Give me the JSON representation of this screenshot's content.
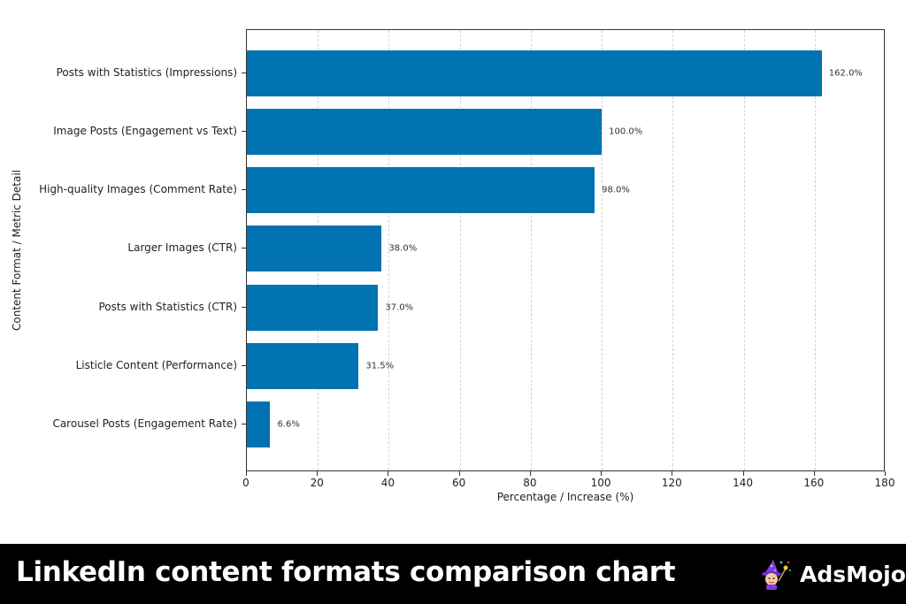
{
  "chart_data": {
    "type": "bar",
    "orientation": "horizontal",
    "title": "",
    "xlabel": "Percentage / Increase (%)",
    "ylabel": "Content Format / Metric Detail",
    "xlim": [
      0,
      180
    ],
    "xticks": [
      0,
      20,
      40,
      60,
      80,
      100,
      120,
      140,
      160,
      180
    ],
    "xtick_labels": [
      "0",
      "20",
      "40",
      "60",
      "80",
      "100",
      "120",
      "140",
      "160",
      "180"
    ],
    "grid": "vertical dashed",
    "bar_color": "#0072b2",
    "categories": [
      "Posts with Statistics (Impressions)",
      "Image Posts (Engagement vs Text)",
      "High-quality Images (Comment Rate)",
      "Larger Images (CTR)",
      "Posts with Statistics (CTR)",
      "Listicle Content (Performance)",
      "Carousel Posts (Engagement Rate)"
    ],
    "values": [
      162.0,
      100.0,
      98.0,
      38.0,
      37.0,
      31.5,
      6.6
    ],
    "value_labels": [
      "162.0%",
      "100.0%",
      "98.0%",
      "38.0%",
      "37.0%",
      "31.5%",
      "6.6%"
    ]
  },
  "banner": {
    "title": "LinkedIn content formats comparison chart",
    "brand_name": "AdsMojo",
    "brand_icon": "wizard-mascot-icon"
  }
}
